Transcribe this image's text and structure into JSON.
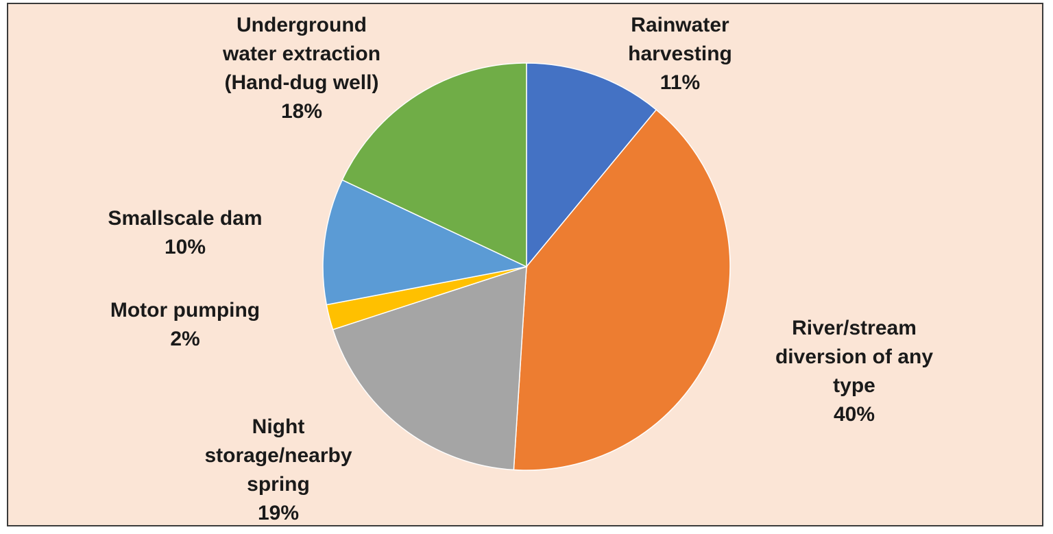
{
  "chart_data": {
    "type": "pie",
    "title": "",
    "slices": [
      {
        "label": "Rainwater\nharvesting",
        "value": 11,
        "percent_label": "11%",
        "color": "#4472c4"
      },
      {
        "label": "River/stream\ndiversion of any\ntype",
        "value": 40,
        "percent_label": "40%",
        "color": "#ed7d31"
      },
      {
        "label": "Night\nstorage/nearby\nspring",
        "value": 19,
        "percent_label": "19%",
        "color": "#a5a5a5"
      },
      {
        "label": "Motor pumping",
        "value": 2,
        "percent_label": "2%",
        "color": "#ffc000"
      },
      {
        "label": "Smallscale dam",
        "value": 10,
        "percent_label": "10%",
        "color": "#5b9bd5"
      },
      {
        "label": "Underground\nwater extraction\n(Hand-dug well)",
        "value": 18,
        "percent_label": "18%",
        "color": "#70ad47"
      }
    ],
    "start_angle_deg": 0,
    "direction": "clockwise",
    "legend": "none"
  }
}
